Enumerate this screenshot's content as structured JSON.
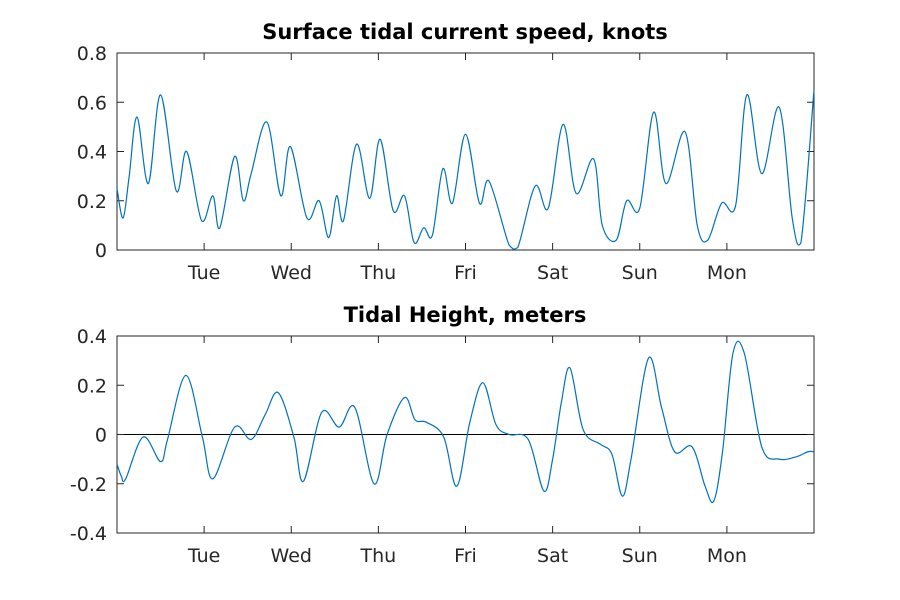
{
  "chart_data": [
    {
      "type": "line",
      "title": "Surface tidal current speed, knots",
      "xlabel": "",
      "ylabel": "",
      "xlim": [
        0,
        8
      ],
      "ylim": [
        0,
        0.8
      ],
      "yticks": [
        0,
        0.2,
        0.4,
        0.6,
        0.8
      ],
      "ytick_labels": [
        "0",
        "0.2",
        "0.4",
        "0.6",
        "0.8"
      ],
      "xticks": [
        1,
        2,
        3,
        4,
        5,
        6,
        7
      ],
      "xtick_labels": [
        "Tue",
        "Wed",
        "Thu",
        "Fri",
        "Sat",
        "Sun",
        "Mon"
      ],
      "grid": false,
      "series": [
        {
          "color": "#0072BD",
          "x": [
            0,
            0.07,
            0.14,
            0.23,
            0.36,
            0.5,
            0.68,
            0.8,
            0.97,
            1.1,
            1.18,
            1.35,
            1.45,
            1.54,
            1.72,
            1.88,
            1.99,
            2.18,
            2.32,
            2.43,
            2.52,
            2.6,
            2.75,
            2.9,
            3.02,
            3.17,
            3.3,
            3.41,
            3.52,
            3.62,
            3.74,
            3.85,
            4.0,
            4.16,
            4.27,
            4.5,
            4.6,
            4.8,
            4.95,
            5.12,
            5.27,
            5.47,
            5.57,
            5.73,
            5.85,
            6.0,
            6.16,
            6.3,
            6.52,
            6.66,
            6.78,
            6.94,
            7.1,
            7.23,
            7.4,
            7.6,
            7.75,
            7.85,
            8.0
          ],
          "y": [
            0.25,
            0.13,
            0.3,
            0.54,
            0.27,
            0.63,
            0.24,
            0.4,
            0.12,
            0.22,
            0.09,
            0.38,
            0.2,
            0.31,
            0.52,
            0.22,
            0.42,
            0.13,
            0.2,
            0.05,
            0.22,
            0.12,
            0.43,
            0.21,
            0.45,
            0.16,
            0.22,
            0.03,
            0.09,
            0.06,
            0.33,
            0.19,
            0.47,
            0.19,
            0.28,
            0.02,
            0.01,
            0.26,
            0.17,
            0.51,
            0.23,
            0.37,
            0.1,
            0.04,
            0.2,
            0.17,
            0.56,
            0.27,
            0.48,
            0.1,
            0.04,
            0.19,
            0.18,
            0.63,
            0.31,
            0.58,
            0.13,
            0.03,
            0.65
          ]
        }
      ]
    },
    {
      "type": "line",
      "title": "Tidal Height, meters",
      "xlabel": "",
      "ylabel": "",
      "xlim": [
        0,
        8
      ],
      "ylim": [
        -0.4,
        0.4
      ],
      "yticks": [
        -0.4,
        -0.2,
        0,
        0.2,
        0.4
      ],
      "ytick_labels": [
        "-0.4",
        "-0.2",
        "0",
        "0.2",
        "0.4"
      ],
      "xticks": [
        1,
        2,
        3,
        4,
        5,
        6,
        7
      ],
      "xtick_labels": [
        "Tue",
        "Wed",
        "Thu",
        "Fri",
        "Sat",
        "Sun",
        "Mon"
      ],
      "grid": false,
      "zero_line": true,
      "series": [
        {
          "color": "#0072BD",
          "x": [
            0,
            0.05,
            0.1,
            0.3,
            0.5,
            0.58,
            0.79,
            0.98,
            1.1,
            1.35,
            1.54,
            1.7,
            1.85,
            2.03,
            2.14,
            2.35,
            2.55,
            2.73,
            2.95,
            3.1,
            3.3,
            3.42,
            3.55,
            3.75,
            3.9,
            4.05,
            4.2,
            4.35,
            4.5,
            4.72,
            4.9,
            5.0,
            5.1,
            5.2,
            5.35,
            5.55,
            5.68,
            5.8,
            5.9,
            6.1,
            6.25,
            6.4,
            6.6,
            6.75,
            6.85,
            6.95,
            7.07,
            7.2,
            7.4,
            7.6,
            7.8,
            7.93,
            8.0
          ],
          "y": [
            -0.12,
            -0.17,
            -0.18,
            -0.01,
            -0.11,
            -0.02,
            0.24,
            -0.01,
            -0.18,
            0.03,
            -0.02,
            0.08,
            0.17,
            -0.01,
            -0.19,
            0.09,
            0.03,
            0.11,
            -0.2,
            0.0,
            0.15,
            0.06,
            0.05,
            -0.01,
            -0.21,
            0.05,
            0.21,
            0.04,
            0.0,
            -0.02,
            -0.23,
            -0.1,
            0.13,
            0.27,
            0.02,
            -0.04,
            -0.08,
            -0.25,
            -0.1,
            0.31,
            0.11,
            -0.07,
            -0.05,
            -0.21,
            -0.27,
            -0.07,
            0.33,
            0.33,
            -0.05,
            -0.1,
            -0.09,
            -0.07,
            -0.07
          ]
        }
      ]
    }
  ]
}
